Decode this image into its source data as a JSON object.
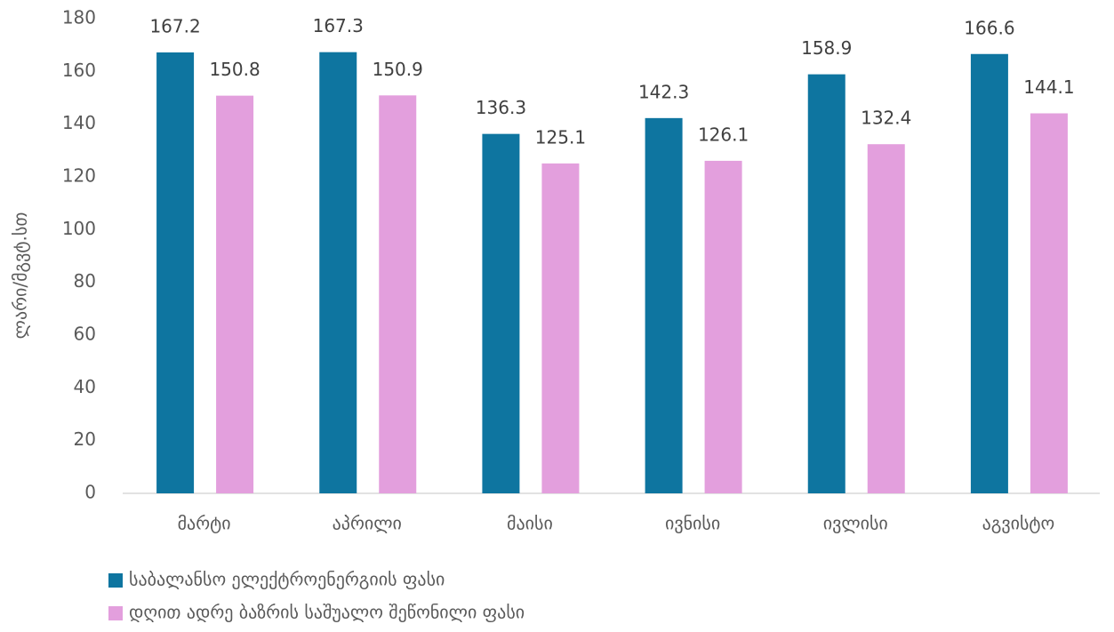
{
  "chart_data": {
    "type": "bar",
    "y_label": "ლარი/მგვტ.სთ",
    "categories": [
      "მარტი",
      "აპრილი",
      "მაისი",
      "ივნისი",
      "ივლისი",
      "აგვისტო"
    ],
    "series": [
      {
        "name": "საბალანსო ელექტროენერგიის ფასი",
        "color": "#0e75a0",
        "values": [
          167.2,
          167.3,
          136.3,
          142.3,
          158.9,
          166.6
        ]
      },
      {
        "name": "დღით ადრე ბაზრის საშუალო შეწონილი ფასი",
        "color": "#e39fdd",
        "values": [
          150.8,
          150.9,
          125.1,
          126.1,
          132.4,
          144.1
        ]
      }
    ],
    "ylim": [
      0,
      180
    ],
    "yticks": [
      0,
      20,
      40,
      60,
      80,
      100,
      120,
      140,
      160,
      180
    ],
    "grid": false,
    "legend": "bottom"
  }
}
